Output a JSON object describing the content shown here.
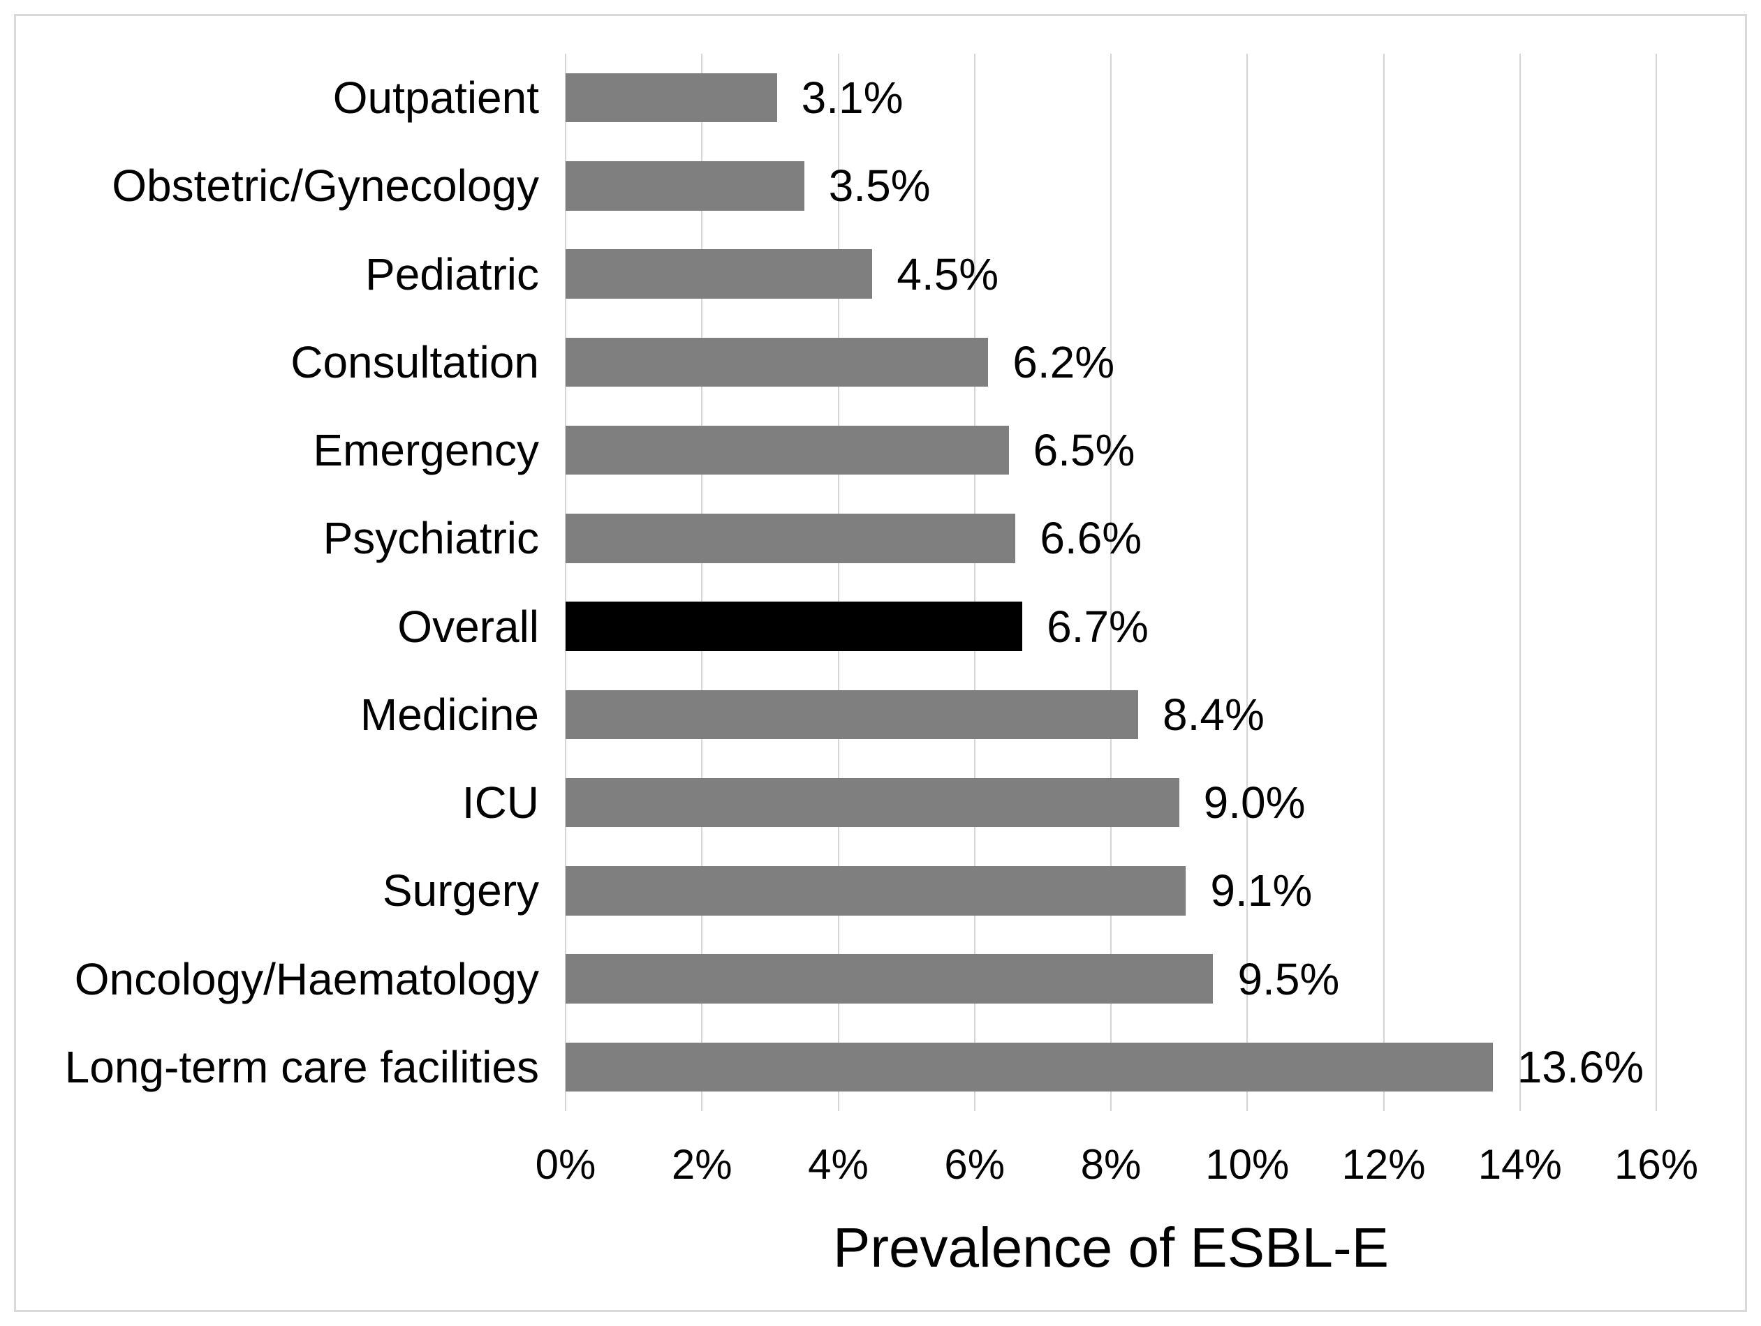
{
  "chart_data": {
    "type": "bar",
    "orientation": "horizontal",
    "title": "",
    "xlabel": "Prevalence of ESBL-E",
    "ylabel": "",
    "categories": [
      "Outpatient",
      "Obstetric/Gynecology",
      "Pediatric",
      "Consultation",
      "Emergency",
      "Psychiatric",
      "Overall",
      "Medicine",
      "ICU",
      "Surgery",
      "Oncology/Haematology",
      "Long-term care facilities"
    ],
    "values": [
      3.1,
      3.5,
      4.5,
      6.2,
      6.5,
      6.6,
      6.7,
      8.4,
      9.0,
      9.1,
      9.5,
      13.6
    ],
    "value_labels": [
      "3.1%",
      "3.5%",
      "4.5%",
      "6.2%",
      "6.5%",
      "6.6%",
      "6.7%",
      "8.4%",
      "9.0%",
      "9.1%",
      "9.5%",
      "13.6%"
    ],
    "highlight_category": "Overall",
    "xlim": [
      0,
      16
    ],
    "x_ticks": [
      "0%",
      "2%",
      "4%",
      "6%",
      "8%",
      "10%",
      "12%",
      "14%",
      "16%"
    ],
    "grid": "vertical-gridlines-on",
    "legend": "none",
    "colors": {
      "bar": "#7f7f7f",
      "highlight_bar": "#000000",
      "gridline": "#d5d5d5",
      "border": "#d9d9d9",
      "text": "#000000",
      "background": "#ffffff"
    }
  }
}
